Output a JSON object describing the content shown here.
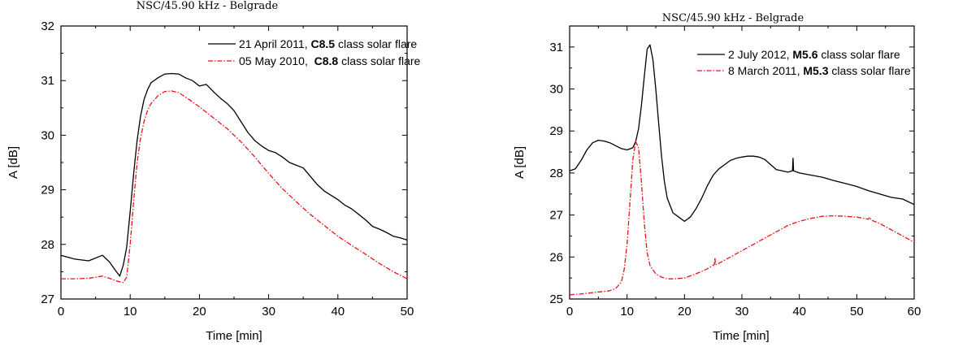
{
  "chart_data": [
    {
      "type": "line",
      "title": "NSC/45.90 kHz - Belgrade",
      "xlabel": "Time [min]",
      "ylabel": "A [dB]",
      "xlim": [
        0,
        50
      ],
      "ylim": [
        27,
        32
      ],
      "xticks": [
        0,
        10,
        20,
        30,
        40,
        50
      ],
      "yticks": [
        27,
        28,
        29,
        30,
        31,
        32
      ],
      "legend_position": "top-right",
      "series": [
        {
          "name": "21 April 2011, C8.5 class solar flare",
          "legend_parts": [
            "21 April 2011, ",
            "C8.5",
            " class solar flare"
          ],
          "color": "#000000",
          "style": "solid",
          "x": [
            0,
            2,
            4,
            6,
            7,
            8,
            8.5,
            9,
            9.5,
            10,
            10.5,
            11,
            11.5,
            12,
            12.5,
            13,
            14,
            15,
            16,
            17,
            18,
            19,
            20,
            21,
            22,
            23,
            24,
            25,
            26,
            27,
            28,
            29,
            30,
            31,
            32,
            33,
            34,
            35,
            36,
            37,
            38,
            39,
            40,
            41,
            42,
            43,
            44,
            45,
            46,
            47,
            48,
            49,
            50
          ],
          "y": [
            27.8,
            27.73,
            27.7,
            27.8,
            27.68,
            27.5,
            27.42,
            27.62,
            27.95,
            28.6,
            29.3,
            29.9,
            30.35,
            30.65,
            30.83,
            30.96,
            31.05,
            31.12,
            31.13,
            31.12,
            31.05,
            31.0,
            30.9,
            30.93,
            30.8,
            30.68,
            30.58,
            30.45,
            30.25,
            30.05,
            29.9,
            29.8,
            29.72,
            29.68,
            29.6,
            29.5,
            29.45,
            29.4,
            29.25,
            29.1,
            28.98,
            28.9,
            28.82,
            28.72,
            28.65,
            28.55,
            28.45,
            28.33,
            28.28,
            28.22,
            28.15,
            28.12,
            28.08
          ]
        },
        {
          "name": "05 May 2010,  C8.8 class solar flare",
          "legend_parts": [
            "05 May 2010,  ",
            "C8.8",
            " class solar flare"
          ],
          "color": "#e8141a",
          "style": "dashdot",
          "x": [
            0,
            2,
            4,
            6,
            7,
            8,
            9,
            9.5,
            10,
            10.5,
            11,
            11.5,
            12,
            12.5,
            13,
            14,
            15,
            16,
            17,
            18,
            20,
            22,
            24,
            26,
            28,
            30,
            32,
            34,
            36,
            38,
            40,
            42,
            44,
            46,
            48,
            50
          ],
          "y": [
            27.37,
            27.37,
            27.38,
            27.42,
            27.38,
            27.33,
            27.3,
            27.4,
            28.0,
            28.8,
            29.5,
            29.95,
            30.25,
            30.45,
            30.58,
            30.72,
            30.8,
            30.81,
            30.78,
            30.7,
            30.52,
            30.32,
            30.12,
            29.88,
            29.6,
            29.3,
            29.02,
            28.78,
            28.55,
            28.35,
            28.15,
            27.98,
            27.82,
            27.65,
            27.5,
            27.37
          ]
        }
      ]
    },
    {
      "type": "line",
      "title": "NSC/45.90 kHz - Belgrade",
      "xlabel": "Time [min]",
      "ylabel": "A [dB]",
      "xlim": [
        0,
        60
      ],
      "ylim": [
        25,
        31.5
      ],
      "xticks": [
        0,
        10,
        20,
        30,
        40,
        50,
        60
      ],
      "yticks": [
        25,
        26,
        27,
        28,
        29,
        30,
        31
      ],
      "legend_position": "top-right",
      "series": [
        {
          "name": "2 July 2012, M5.6 class solar flare",
          "legend_parts": [
            "2 July 2012, ",
            "M5.6",
            " class solar flare"
          ],
          "color": "#000000",
          "style": "solid",
          "x": [
            0,
            1,
            2,
            3,
            4,
            5,
            6,
            7,
            8,
            9,
            10,
            11,
            11.5,
            12,
            12.5,
            13,
            13.5,
            14,
            14.5,
            15,
            15.5,
            16,
            16.5,
            17,
            18,
            19,
            20,
            21,
            22,
            23,
            24,
            25,
            26,
            27,
            28,
            29,
            30,
            31,
            32,
            33,
            34,
            35,
            36,
            37,
            38,
            38.8,
            38.9,
            39,
            40,
            42,
            44,
            46,
            48,
            50,
            52,
            54,
            56,
            58,
            60
          ],
          "y": [
            28.05,
            28.1,
            28.3,
            28.55,
            28.72,
            28.78,
            28.76,
            28.72,
            28.65,
            28.58,
            28.55,
            28.6,
            28.75,
            29.05,
            29.6,
            30.3,
            30.95,
            31.05,
            30.7,
            30.0,
            29.2,
            28.4,
            27.8,
            27.4,
            27.05,
            26.95,
            26.85,
            26.95,
            27.15,
            27.4,
            27.7,
            27.95,
            28.1,
            28.2,
            28.3,
            28.35,
            28.38,
            28.4,
            28.4,
            28.38,
            28.32,
            28.2,
            28.08,
            28.05,
            28.02,
            28.05,
            28.35,
            28.05,
            28.0,
            27.95,
            27.9,
            27.82,
            27.75,
            27.68,
            27.58,
            27.5,
            27.42,
            27.38,
            27.25
          ]
        },
        {
          "name": "8 March 2011, M5.3 class solar flare",
          "legend_parts": [
            "8 March 2011, ",
            "M5.3",
            " class solar flare"
          ],
          "color": "#e8141a",
          "style": "dashdot",
          "x": [
            0,
            2,
            4,
            6,
            7,
            8,
            9,
            9.5,
            10,
            10.5,
            11,
            11.5,
            12,
            12.5,
            13,
            13.5,
            14,
            15,
            16,
            17,
            18,
            20,
            22,
            24,
            25.2,
            25.3,
            25.4,
            26,
            28,
            30,
            32,
            34,
            36,
            38,
            40,
            42,
            44,
            46,
            48,
            50,
            52,
            52.3,
            52.5,
            54,
            56,
            58,
            60
          ],
          "y": [
            25.1,
            25.12,
            25.15,
            25.18,
            25.2,
            25.25,
            25.4,
            25.7,
            26.3,
            27.3,
            28.3,
            28.75,
            28.6,
            27.8,
            26.8,
            26.1,
            25.8,
            25.6,
            25.52,
            25.48,
            25.48,
            25.5,
            25.6,
            25.72,
            25.82,
            25.98,
            25.82,
            25.85,
            26.0,
            26.15,
            26.3,
            26.45,
            26.6,
            26.75,
            26.85,
            26.92,
            26.97,
            26.98,
            26.97,
            26.95,
            26.9,
            26.95,
            26.88,
            26.8,
            26.65,
            26.5,
            26.35
          ]
        }
      ]
    }
  ]
}
